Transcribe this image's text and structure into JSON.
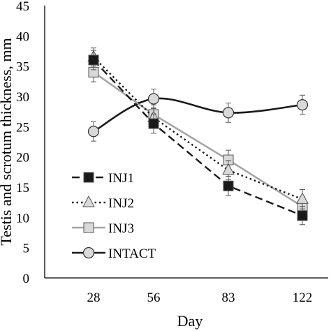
{
  "chart_data": {
    "type": "line",
    "xlabel": "Day",
    "ylabel": "Testis and scrotum thickness, mm",
    "categories": [
      "28",
      "56",
      "83",
      "122"
    ],
    "ylim": [
      0,
      45
    ],
    "yticks": [
      0,
      5,
      10,
      15,
      20,
      25,
      30,
      35,
      40,
      45
    ],
    "grid": false,
    "legend_position": "bottom-left",
    "series": [
      {
        "name": "INJ1",
        "values": [
          36.0,
          25.5,
          15.2,
          10.3
        ],
        "errors": [
          1.6,
          1.6,
          1.6,
          1.5
        ],
        "line": "dashed",
        "marker": "square",
        "marker_fill": "#1a1a1a",
        "color": "#1a1a1a"
      },
      {
        "name": "INJ2",
        "values": [
          36.5,
          26.5,
          17.8,
          13.0
        ],
        "errors": [
          1.5,
          1.6,
          1.6,
          1.6
        ],
        "line": "dotted",
        "marker": "triangle",
        "marker_fill": "#d9d9d9",
        "color": "#1a1a1a"
      },
      {
        "name": "INJ3",
        "values": [
          34.0,
          27.0,
          19.5,
          11.8
        ],
        "errors": [
          1.6,
          1.6,
          1.6,
          1.6
        ],
        "line": "solid",
        "marker": "square",
        "marker_fill": "#d9d9d9",
        "color": "#a6a6a6"
      },
      {
        "name": "INTACT",
        "values": [
          24.2,
          29.6,
          27.3,
          28.6
        ],
        "errors": [
          1.6,
          1.6,
          1.6,
          1.6
        ],
        "line": "solid",
        "marker": "circle",
        "marker_fill": "#d9d9d9",
        "color": "#1a1a1a"
      }
    ]
  }
}
